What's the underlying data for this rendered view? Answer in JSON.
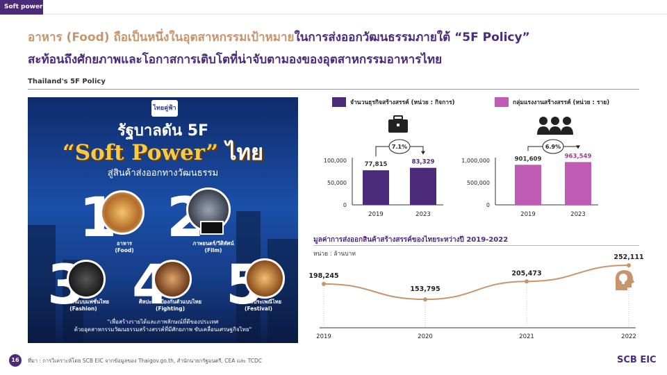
{
  "tab": "Soft power",
  "headline": {
    "line1_part1": "อาหาร (Food) ถือเป็นหนึ่งในอุตสาหกรรมเป้าหมาย",
    "line1_part2": "ในการส่งออกวัฒนธรรมภายใต้ “5F Policy”",
    "line2": "สะท้อนถึงศักยภาพและโอกาสการเติบโตที่น่าจับตามองของอุตสาหกรรมอาหารไทย"
  },
  "section_label": "Thailand's 5F Policy",
  "poster": {
    "logo": "ไทยคู่ฟ้า",
    "title1": "รัฐบาลดัน 5F",
    "title2_quote": "“Soft Power”",
    "title2_thai": "ไทย",
    "subtitle": "สู่สินค้าส่งออกทางวัฒนธรรม",
    "items": [
      {
        "num": "1",
        "caption1": "อาหาร",
        "caption2": "(Food)"
      },
      {
        "num": "2",
        "caption1": "ภาพยนตร์/วีดิทัศน์",
        "caption2": "(Film)"
      },
      {
        "num": "3",
        "caption1": "การออกแบบแฟชั่นไทย",
        "caption2": "(Fashion)"
      },
      {
        "num": "4",
        "caption1": "ศิลปะการป้องกันตัวแบบไทย",
        "caption2": "(Fighting)"
      },
      {
        "num": "5",
        "caption1": "เทศกาลประเพณีไทย",
        "caption2": "(Festival)"
      }
    ],
    "note1": "\"เพื่อสร้างรายได้และภาพลักษณ์ที่ดีของประเทศ",
    "note2": "ด้วยอุตสาหกรรมวัฒนธรรมสร้างสรรค์ที่มีศักยภาพ ขับเคลื่อนเศรษฐกิจไทย\""
  },
  "legend": {
    "left": "จำนวนธุรกิจสร้างสรรค์ (หน่วย : กิจการ)",
    "right": "กลุ่มแรงงานสร้างสรรค์ (หน่วย : ราย)"
  },
  "colors": {
    "purple": "#4b2a7a",
    "pink": "#c05bb5",
    "gold": "#c8956b",
    "line": "#c8956b"
  },
  "icons": {
    "business": "briefcase-icon",
    "workers": "people-icon",
    "idea": "lightbulb-head-icon"
  },
  "line_title": "มูลค่าการส่งออกสินค้าสร้างสรรค์ของไทยระหว่างปี 2019-2022",
  "line_unit": "หน่วย : ล้านบาท",
  "chart_data": [
    {
      "type": "bar",
      "name": "จำนวนธุรกิจสร้างสรรค์ (หน่วย : กิจการ)",
      "categories": [
        "2019",
        "2023"
      ],
      "values": [
        77815,
        83329
      ],
      "value_labels": [
        "77,815",
        "83,329"
      ],
      "growth_label": "7.1%",
      "ylim": [
        0,
        100000
      ],
      "yticks": [
        0,
        50000,
        100000
      ],
      "ytick_labels": [
        "0",
        "50,000",
        "100,000"
      ],
      "bar_color": "#4b2a7a",
      "label_colors": [
        "#333333",
        "#4b2a7a"
      ]
    },
    {
      "type": "bar",
      "name": "กลุ่มแรงงานสร้างสรรค์ (หน่วย : ราย)",
      "categories": [
        "2019",
        "2023"
      ],
      "values": [
        901609,
        963549
      ],
      "value_labels": [
        "901,609",
        "963,549"
      ],
      "growth_label": "6.9%",
      "ylim": [
        0,
        1000000
      ],
      "yticks": [
        0,
        500000,
        1000000
      ],
      "ytick_labels": [
        "0",
        "500,000",
        "1,000,000"
      ],
      "bar_color": "#c05bb5",
      "label_colors": [
        "#333333",
        "#a23a97"
      ]
    },
    {
      "type": "line",
      "title": "มูลค่าการส่งออกสินค้าสร้างสรรค์ของไทยระหว่างปี 2019-2022",
      "ylabel": "หน่วย : ล้านบาท",
      "x": [
        "2019",
        "2020",
        "2021",
        "2022"
      ],
      "values": [
        198245,
        153795,
        205473,
        252111
      ],
      "value_labels": [
        "198,245",
        "153,795",
        "205,473",
        "252,111"
      ],
      "ylim": [
        140000,
        260000
      ],
      "grid": false
    }
  ],
  "footer": {
    "page": "16",
    "source": "ที่มา : การวิเคราะห์โดย SCB EIC จากข้อมูลของ Thaigov.go.th, สำนักนายกรัฐมนตรี, CEA และ TCDC",
    "brand": "SCB EIC"
  }
}
